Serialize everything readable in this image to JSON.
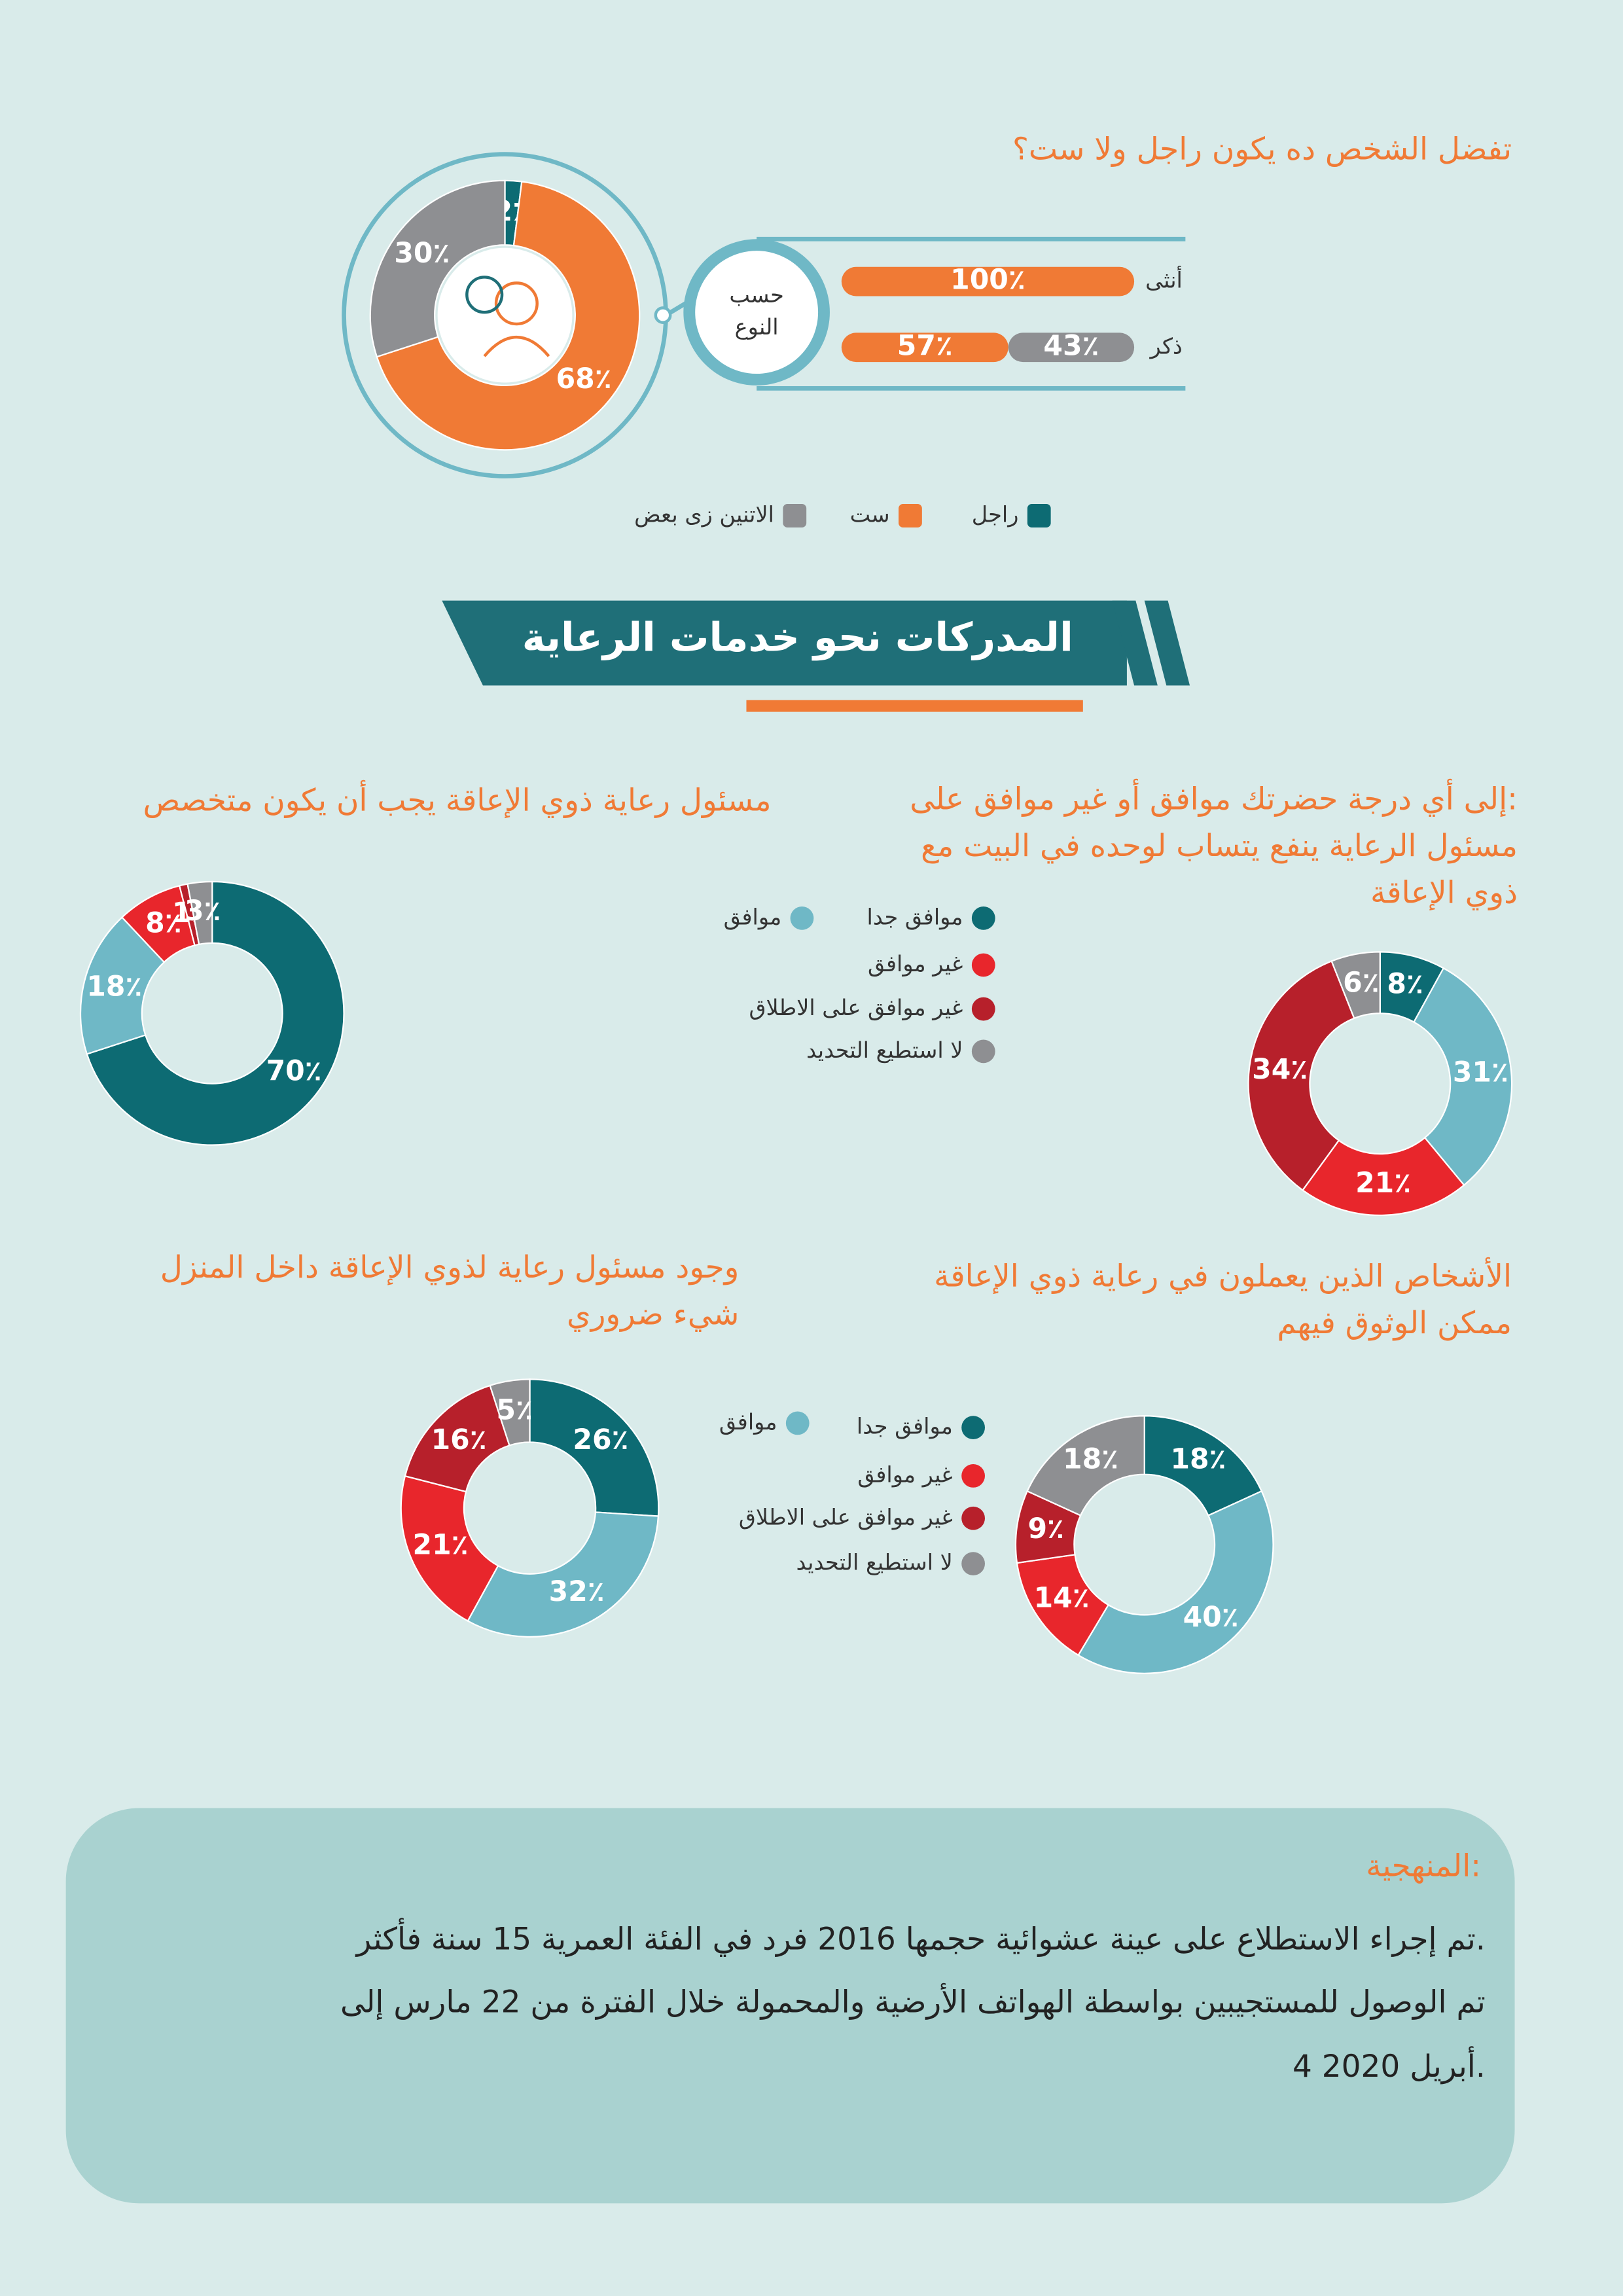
{
  "chart_data": [
    {
      "type": "pie",
      "title": "تفضل الشخص ده يكون راجل ولا ست؟",
      "categories": [
        "راجل",
        "ست",
        "الاتنين زى بعض"
      ],
      "values": [
        2,
        68,
        30
      ],
      "value_labels": [
        "2٪",
        "68٪",
        "30٪"
      ],
      "colors": [
        "#0d6b73",
        "#f07a35",
        "#8e8f92"
      ],
      "legend": "bottom"
    },
    {
      "type": "bar",
      "orientation": "horizontal",
      "stacked": true,
      "title_lines": [
        "حسب",
        "النوع"
      ],
      "categories": [
        "أنثى",
        "ذكر"
      ],
      "series": [
        {
          "color": "#f07a35",
          "values": [
            100,
            57
          ],
          "value_labels": [
            "100٪",
            "57٪"
          ]
        },
        {
          "color": "#8e8f92",
          "values": [
            null,
            43
          ],
          "value_labels": [
            null,
            "43٪"
          ]
        }
      ]
    },
    {
      "type": "donut",
      "title_lines": [
        "إلى أي درجة حضرتك موافق أو غير موافق على:",
        "مسئول الرعاية ينفع يتساب لوحده في البيت مع",
        "ذوي الإعاقة"
      ],
      "categories": [
        "موافق جدا",
        "موافق",
        "غير موافق",
        "غير موافق على الاطلاق",
        "لا استطيع التحديد"
      ],
      "values": [
        8,
        31,
        21,
        34,
        6
      ],
      "value_labels": [
        "8٪",
        "31٪",
        "21٪",
        "34٪",
        "6٪"
      ],
      "colors": [
        "#0d6b73",
        "#6fb8c6",
        "#e8262c",
        "#b7202b",
        "#8e8f92"
      ]
    },
    {
      "type": "donut",
      "title_lines": [
        "مسئول رعاية ذوي الإعاقة يجب أن يكون متخصص"
      ],
      "values": [
        70,
        18,
        8,
        1,
        3
      ],
      "value_labels": [
        "70٪",
        "18٪",
        "8٪",
        "1٪",
        "3٪"
      ],
      "colors": [
        "#0d6b73",
        "#6fb8c6",
        "#e8262c",
        "#b7202b",
        "#8e8f92"
      ]
    },
    {
      "type": "donut",
      "title_lines": [
        "الأشخاص الذين يعملون في رعاية ذوي الإعاقة",
        "ممكن الوثوق فيهم"
      ],
      "categories": [
        "موافق جدا",
        "موافق",
        "غير موافق",
        "غير موافق على الاطلاق",
        "لا استطيع التحديد"
      ],
      "values": [
        18,
        40,
        14,
        9,
        18
      ],
      "value_labels": [
        "18٪",
        "40٪",
        "14٪",
        "9٪",
        "18٪"
      ],
      "colors": [
        "#0d6b73",
        "#6fb8c6",
        "#e8262c",
        "#b7202b",
        "#8e8f92"
      ]
    },
    {
      "type": "donut",
      "title_lines": [
        "وجود مسئول رعاية لذوي الإعاقة  داخل المنزل",
        "شيء ضروري"
      ],
      "values": [
        26,
        32,
        21,
        16,
        5
      ],
      "value_labels": [
        "26٪",
        "32٪",
        "21٪",
        "16٪",
        "5٪"
      ],
      "colors": [
        "#0d6b73",
        "#6fb8c6",
        "#e8262c",
        "#b7202b",
        "#8e8f92"
      ]
    }
  ],
  "section_title": "المدركات نحو خدمات الرعاية",
  "methodology": {
    "title": "المنهجية:",
    "lines": [
      "تم إجراء الاستطلاع على عينة عشوائية حجمها 2016 فرد في الفئة العمرية 15 سنة فأكثر.",
      "تم الوصول للمستجيبين بواسطة الهواتف الأرضية والمحمولة خلال الفترة من 22 مارس إلى",
      "4 أبريل 2020."
    ]
  }
}
